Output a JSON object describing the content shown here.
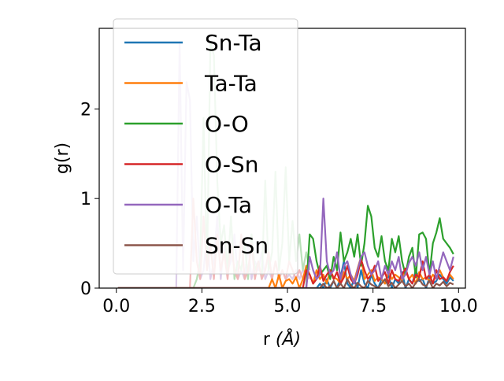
{
  "chart_data": {
    "type": "line",
    "title": "",
    "xlabel": "r ",
    "xlabel_unit": "(Å)",
    "ylabel": "g(r)",
    "xlim": [
      -0.5,
      10.2
    ],
    "ylim": [
      0,
      2.9
    ],
    "xticks": [
      0.0,
      2.5,
      5.0,
      7.5,
      10.0
    ],
    "xtick_labels": [
      "0.0",
      "2.5",
      "5.0",
      "7.5",
      "10.0"
    ],
    "yticks": [
      0,
      1,
      2
    ],
    "ytick_labels": [
      "0",
      "1",
      "2"
    ],
    "grid": false,
    "legend_position": "upper left",
    "x": [
      0.05,
      0.15,
      0.25,
      0.35,
      0.45,
      0.55,
      0.65,
      0.75,
      0.85,
      0.95,
      1.05,
      1.15,
      1.25,
      1.35,
      1.45,
      1.55,
      1.65,
      1.75,
      1.85,
      1.95,
      2.05,
      2.15,
      2.25,
      2.35,
      2.45,
      2.55,
      2.65,
      2.75,
      2.85,
      2.95,
      3.05,
      3.15,
      3.25,
      3.35,
      3.45,
      3.55,
      3.65,
      3.75,
      3.85,
      3.95,
      4.05,
      4.15,
      4.25,
      4.35,
      4.45,
      4.55,
      4.65,
      4.75,
      4.85,
      4.95,
      5.05,
      5.15,
      5.25,
      5.35,
      5.45,
      5.55,
      5.65,
      5.75,
      5.85,
      5.95,
      6.05,
      6.15,
      6.25,
      6.35,
      6.45,
      6.55,
      6.65,
      6.75,
      6.85,
      6.95,
      7.05,
      7.15,
      7.25,
      7.35,
      7.45,
      7.55,
      7.65,
      7.75,
      7.85,
      7.95,
      8.05,
      8.15,
      8.25,
      8.35,
      8.45,
      8.55,
      8.65,
      8.75,
      8.85,
      8.95,
      9.05,
      9.15,
      9.25,
      9.35,
      9.45,
      9.55,
      9.65,
      9.75,
      9.85
    ],
    "series": [
      {
        "name": "Sn-Ta",
        "color": "#1f77b4",
        "values": [
          0,
          0,
          0,
          0,
          0,
          0,
          0,
          0,
          0,
          0,
          0,
          0,
          0,
          0,
          0,
          0,
          0,
          0,
          0,
          0,
          0,
          0,
          0,
          0,
          0,
          0,
          0,
          0,
          0,
          0,
          0,
          0,
          0,
          0,
          0,
          0,
          0,
          0,
          0,
          0,
          0,
          0,
          0,
          0,
          0,
          0,
          0,
          0,
          0,
          0,
          0,
          0,
          0,
          0,
          0,
          0,
          0,
          0,
          0,
          0.05,
          0,
          0.1,
          0,
          0.08,
          0,
          0.12,
          0.3,
          0.05,
          0,
          0.1,
          0,
          0.2,
          0.05,
          0,
          0.15,
          0.05,
          0,
          0.1,
          0.05,
          0.15,
          0,
          0.1,
          0.05,
          0.18,
          0,
          0.1,
          0.05,
          0.2,
          0.08,
          0.1,
          0,
          0.12,
          0.05,
          0.08,
          0.15,
          0.1,
          0.05,
          0.12,
          0.08
        ]
      },
      {
        "name": "Ta-Ta",
        "color": "#ff7f0e",
        "values": [
          0,
          0,
          0,
          0,
          0,
          0,
          0,
          0,
          0,
          0,
          0,
          0,
          0,
          0,
          0,
          0,
          0,
          0,
          0,
          0,
          0,
          0,
          0,
          0,
          0,
          0,
          0,
          0,
          0,
          0,
          0,
          0,
          0,
          0,
          0,
          0,
          0,
          0,
          0,
          0,
          0,
          0,
          0,
          0,
          0,
          0.1,
          0,
          0.15,
          0,
          0.08,
          0.1,
          0.05,
          0.12,
          0,
          0.1,
          0.25,
          0.15,
          0.05,
          0.2,
          0.1,
          0.15,
          0.05,
          0.2,
          0.12,
          0.1,
          0.05,
          0.18,
          0.1,
          0.15,
          0.08,
          0.22,
          0.35,
          0.1,
          0.15,
          0.2,
          0.08,
          0.12,
          0.1,
          0.05,
          0.18,
          0.1,
          0.15,
          0.12,
          0.08,
          0.2,
          0.1,
          0.15,
          0.05,
          0.18,
          0.1,
          0.12,
          0.08,
          0.15,
          0.1,
          0.2,
          0.12,
          0.08,
          0.15,
          0.1
        ]
      },
      {
        "name": "O-O",
        "color": "#2ca02c",
        "values": [
          0,
          0,
          0,
          0,
          0,
          0,
          0,
          0,
          0,
          0,
          0,
          0,
          0,
          0,
          0,
          0,
          0,
          0,
          0,
          0,
          0,
          0,
          0,
          0,
          0,
          0,
          0,
          0,
          0,
          0,
          0,
          0,
          0,
          0,
          0,
          0,
          0,
          0,
          0,
          0,
          0,
          0,
          0,
          0,
          0,
          0,
          0,
          0,
          0,
          0,
          0,
          0,
          0,
          0,
          0,
          0,
          0.6,
          0.55,
          0.3,
          0.15,
          0.2,
          0.25,
          0.1,
          0.35,
          0.2,
          0.62,
          0.3,
          0.4,
          0.55,
          0.35,
          0.6,
          0.25,
          0.5,
          0.92,
          0.8,
          0.45,
          0.35,
          0.58,
          0.3,
          0.2,
          0.55,
          0.4,
          0.58,
          0.3,
          0.15,
          0.35,
          0.45,
          0.12,
          0.6,
          0.62,
          0.55,
          0.15,
          0.5,
          0.62,
          0.78,
          0.55,
          0.5,
          0.45,
          0.38
        ]
      },
      {
        "name": "O-Sn",
        "color": "#d62728",
        "values": [
          0,
          0,
          0,
          0,
          0,
          0,
          0,
          0,
          0,
          0,
          0,
          0,
          0,
          0,
          0,
          0,
          0,
          0,
          0,
          0,
          0,
          0,
          0,
          0,
          0,
          0,
          0,
          0,
          0,
          0,
          0,
          0,
          0,
          0,
          0,
          0,
          0,
          0,
          0,
          0,
          0,
          0,
          0,
          0,
          0,
          0,
          0,
          0,
          0,
          0,
          0,
          0,
          0,
          0,
          0,
          0.2,
          0.15,
          0.05,
          0.1,
          0.25,
          0.08,
          0.15,
          0.2,
          0.1,
          0.18,
          0.05,
          0.12,
          0.25,
          0.1,
          0.05,
          0.15,
          0.32,
          0.2,
          0.1,
          0.15,
          0.25,
          0.08,
          0.12,
          0.18,
          0.05,
          0.2,
          0.1,
          0.08,
          0.15,
          0.22,
          0.1,
          0.05,
          0.15,
          0.12,
          0.3,
          0.1,
          0.15,
          0.05,
          0.2,
          0.1,
          0.12,
          0.08,
          0.18,
          0.25
        ]
      },
      {
        "name": "O-Ta",
        "color": "#9467bd",
        "values": [
          0,
          0,
          0,
          0,
          0,
          0,
          0,
          0,
          0,
          0,
          0,
          0,
          0,
          0,
          0,
          0,
          0,
          0,
          0,
          0,
          0,
          0,
          0,
          0,
          0,
          0,
          0,
          0,
          0,
          0,
          0,
          0,
          0,
          0,
          0,
          0,
          0,
          0,
          0,
          0,
          0,
          0,
          0,
          0,
          0,
          0,
          0,
          0,
          0,
          0,
          0,
          0,
          0,
          0,
          0,
          0,
          0.35,
          0.2,
          0.1,
          0.15,
          1.0,
          0.3,
          0.15,
          0.2,
          0.4,
          0.1,
          0.25,
          0.3,
          0.15,
          0.05,
          0.2,
          0.35,
          0.4,
          0.25,
          0.15,
          0.2,
          0.3,
          0.1,
          0.25,
          0.15,
          0.3,
          0.2,
          0.35,
          0.1,
          0.15,
          0.28,
          0.35,
          0.25,
          0.4,
          0.2,
          0.35,
          0.15,
          0.3,
          0.1,
          0.25,
          0.4,
          0.3,
          0.2,
          0.35
        ]
      },
      {
        "name": "Sn-Sn",
        "color": "#8c564b",
        "values": [
          0,
          0,
          0,
          0,
          0,
          0,
          0,
          0,
          0,
          0,
          0,
          0,
          0,
          0,
          0,
          0,
          0,
          0,
          0,
          0,
          0,
          0,
          0,
          0,
          0,
          0,
          0,
          0,
          0,
          0,
          0,
          0,
          0,
          0,
          0,
          0,
          0,
          0,
          0,
          0,
          0,
          0,
          0,
          0,
          0,
          0,
          0,
          0,
          0,
          0,
          0,
          0,
          0,
          0,
          0,
          0,
          0,
          0,
          0,
          0,
          0.05,
          0,
          0.02,
          0.08,
          0,
          0.05,
          0,
          0.1,
          0.03,
          0,
          0.06,
          0.02,
          0,
          0.08,
          0.04,
          0.02,
          0,
          0.05,
          0.1,
          0.02,
          0.06,
          0,
          0.04,
          0.08,
          0.02,
          0.05,
          0,
          0.06,
          0.1,
          0.04,
          0.02,
          0.08,
          0,
          0.05,
          0.03,
          0.07,
          0.02,
          0.06,
          0.04
        ]
      }
    ],
    "faded_layer": {
      "x": [
        1.55,
        1.65,
        1.75,
        1.85,
        1.95,
        2.05,
        2.15,
        2.25,
        2.35,
        2.45,
        2.55,
        2.65,
        2.75,
        2.85,
        2.95,
        3.05,
        3.15,
        3.25,
        3.35,
        3.45,
        3.55,
        3.65,
        3.75,
        3.85,
        3.95,
        4.05,
        4.15,
        4.25,
        4.35,
        4.45,
        4.55,
        4.65,
        4.75,
        4.85,
        4.95,
        5.05,
        5.15,
        5.25,
        5.35,
        5.45,
        5.55,
        5.65
      ],
      "series": [
        {
          "color": "#9467bd",
          "values": [
            0,
            0,
            0,
            2.75,
            0.2,
            2.3,
            2.1,
            0.3,
            0.8,
            0.1,
            0.2,
            0.6,
            0.1,
            0.3,
            0.8,
            0.1,
            0.5,
            0.2,
            0.3,
            0.6,
            0.1,
            0.2,
            0.1,
            0.5,
            0.1,
            0.3,
            0.2,
            0.4,
            0.1,
            0.2,
            0.1,
            0.3,
            0.1,
            0.2,
            0.1,
            0.15,
            0.1,
            0.2,
            0.1,
            0.2,
            0.15,
            0.1
          ]
        },
        {
          "color": "#2ca02c",
          "values": [
            0,
            0,
            0,
            0,
            0,
            0,
            0,
            0,
            0.1,
            0.3,
            1.9,
            0.2,
            2.75,
            2.6,
            1.2,
            0.5,
            0.7,
            0.2,
            0.8,
            0.1,
            0.3,
            0.2,
            0.5,
            0.1,
            0.6,
            0.2,
            0.3,
            0.1,
            1.2,
            0.2,
            0.4,
            1.3,
            0.2,
            0.5,
            1.35,
            0.3,
            0.75,
            0.3,
            0.6,
            0.2,
            0.4,
            0.2
          ]
        },
        {
          "color": "#d62728",
          "values": [
            0,
            0,
            0,
            0,
            0,
            0,
            0,
            1.0,
            0.3,
            0.1,
            0.8,
            0.2,
            0.5,
            0.1,
            0.6,
            0.2,
            0.4,
            0.1,
            0.5,
            0.2,
            0.1,
            0.6,
            0.1,
            0.2,
            0.5,
            0.1,
            0.3,
            0.1,
            0.2,
            0.4,
            0.1,
            0.3,
            0.1,
            0.2,
            0.1,
            0.3,
            0.2,
            0.1,
            0.2,
            0.1,
            0.15,
            0.1
          ]
        }
      ]
    }
  }
}
